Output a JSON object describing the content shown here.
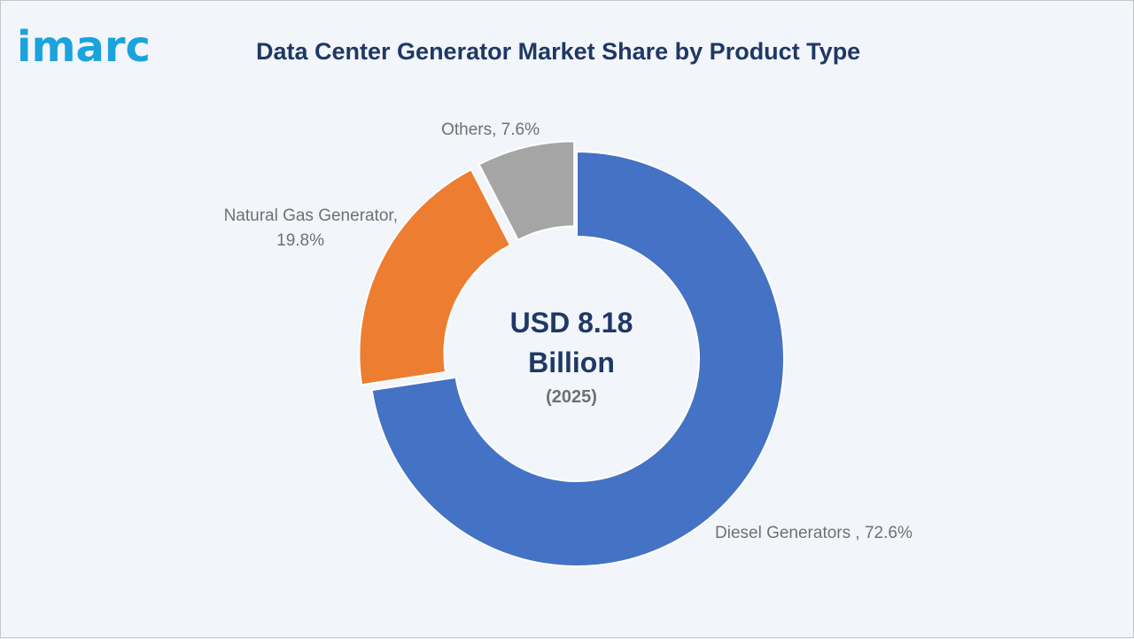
{
  "brand": {
    "logo_text": "imarc"
  },
  "chart_data": {
    "type": "pie",
    "style": "donut",
    "title": "Data Center Generator Market Share by Product Type",
    "center": {
      "value_line1": "USD 8.18",
      "value_line2": "Billion",
      "year": "(2025)"
    },
    "slices": [
      {
        "name": "Diesel Generators",
        "value": 72.6,
        "label": "Diesel Generators , 72.6%",
        "color": "#4472c4",
        "exploded": false
      },
      {
        "name": "Natural Gas Generator",
        "value": 19.8,
        "label_line1": "Natural Gas Generator,",
        "label_line2": "19.8%",
        "color": "#ed7d31",
        "exploded": true
      },
      {
        "name": "Others",
        "value": 7.6,
        "label": "Others, 7.6%",
        "color": "#a5a5a5",
        "exploded": true
      }
    ]
  }
}
